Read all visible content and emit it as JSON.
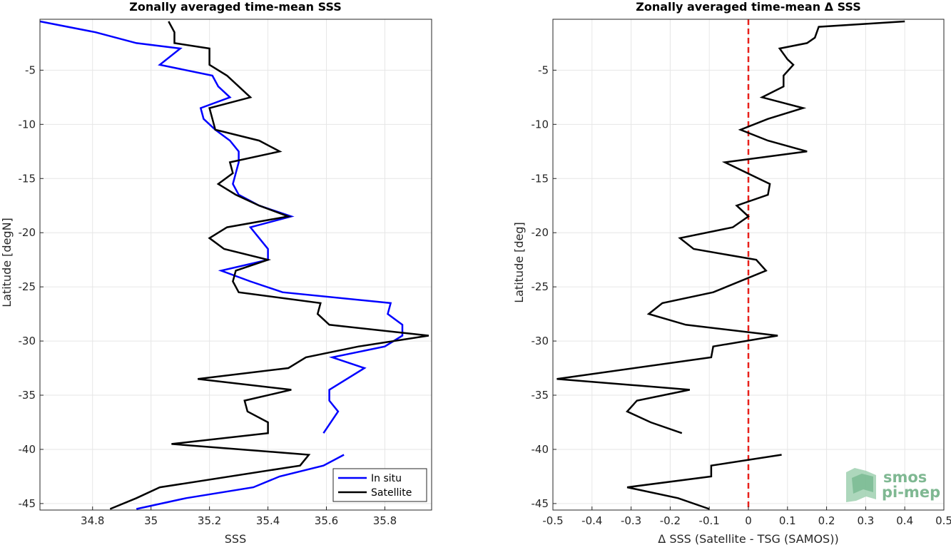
{
  "chart_data": [
    {
      "type": "line",
      "title": "Zonally averaged time-mean SSS",
      "xlabel": "SSS",
      "ylabel": "Latitude [degN]",
      "xlim": [
        34.62,
        35.96
      ],
      "ylim": [
        -45.6,
        -0.3
      ],
      "xticks": [
        34.8,
        35,
        35.2,
        35.4,
        35.6,
        35.8
      ],
      "xtick_labels": [
        "34.8",
        "35",
        "35.2",
        "35.4",
        "35.6",
        "35.8"
      ],
      "yticks": [
        -45,
        -40,
        -35,
        -30,
        -25,
        -20,
        -15,
        -10,
        -5
      ],
      "ytick_labels": [
        "-45",
        "-40",
        "-35",
        "-30",
        "-25",
        "-20",
        "-15",
        "-10",
        "-5"
      ],
      "grid": true,
      "legend_position": "bottom-right",
      "series": [
        {
          "name": "In situ",
          "color": "#0000ff",
          "points": [
            [
              34.62,
              -0.5
            ],
            [
              34.81,
              -1.5
            ],
            [
              34.95,
              -2.5
            ],
            [
              35.1,
              -3
            ],
            [
              35.03,
              -4.5
            ],
            [
              35.21,
              -5.5
            ],
            [
              35.23,
              -6.5
            ],
            [
              35.27,
              -7.5
            ],
            [
              35.17,
              -8.5
            ],
            [
              35.18,
              -9.5
            ],
            [
              35.22,
              -10.5
            ],
            [
              35.27,
              -11.5
            ],
            [
              35.3,
              -12.5
            ],
            [
              35.3,
              -13.5
            ],
            [
              35.29,
              -14.5
            ],
            [
              35.28,
              -15.5
            ],
            [
              35.3,
              -16.5
            ],
            [
              35.37,
              -17.5
            ],
            [
              35.48,
              -18.5
            ],
            [
              35.34,
              -19.5
            ],
            [
              35.37,
              -20.5
            ],
            [
              35.4,
              -21.5
            ],
            [
              35.4,
              -22.5
            ],
            [
              35.24,
              -23.5
            ],
            [
              35.34,
              -24.5
            ],
            [
              35.45,
              -25.5
            ],
            [
              35.82,
              -26.5
            ],
            [
              35.81,
              -27.5
            ],
            [
              35.86,
              -28.5
            ],
            [
              35.86,
              -29.5
            ],
            [
              35.8,
              -30.5
            ],
            [
              35.62,
              -31.5
            ],
            [
              35.73,
              -32.5
            ],
            [
              35.61,
              -34.5
            ],
            [
              35.61,
              -35.5
            ],
            [
              35.64,
              -36.5
            ],
            [
              35.59,
              -38.5
            ]
          ]
        },
        {
          "name": "In situ",
          "color": "#0000ff",
          "points": [
            [
              35.66,
              -40.5
            ],
            [
              35.59,
              -41.5
            ],
            [
              35.44,
              -42.5
            ],
            [
              35.35,
              -43.5
            ],
            [
              35.12,
              -44.5
            ],
            [
              34.95,
              -45.5
            ]
          ]
        },
        {
          "name": "Satellite",
          "color": "#000000",
          "points": [
            [
              35.06,
              -0.5
            ],
            [
              35.08,
              -1.5
            ],
            [
              35.08,
              -2.5
            ],
            [
              35.2,
              -3
            ],
            [
              35.2,
              -4.5
            ],
            [
              35.26,
              -5.5
            ],
            [
              35.3,
              -6.5
            ],
            [
              35.34,
              -7.5
            ],
            [
              35.2,
              -8.5
            ],
            [
              35.21,
              -9.5
            ],
            [
              35.22,
              -10.5
            ],
            [
              35.37,
              -11.5
            ],
            [
              35.44,
              -12.5
            ],
            [
              35.27,
              -13.5
            ],
            [
              35.28,
              -14.5
            ],
            [
              35.23,
              -15.5
            ],
            [
              35.29,
              -16.5
            ],
            [
              35.37,
              -17.5
            ],
            [
              35.47,
              -18.5
            ],
            [
              35.26,
              -19.5
            ],
            [
              35.2,
              -20.5
            ],
            [
              35.25,
              -21.5
            ],
            [
              35.4,
              -22.5
            ],
            [
              35.29,
              -23.5
            ],
            [
              35.28,
              -24.5
            ],
            [
              35.3,
              -25.5
            ],
            [
              35.58,
              -26.5
            ],
            [
              35.57,
              -27.5
            ],
            [
              35.61,
              -28.5
            ],
            [
              35.95,
              -29.5
            ],
            [
              35.71,
              -30.5
            ],
            [
              35.53,
              -31.5
            ],
            [
              35.47,
              -32.5
            ],
            [
              35.16,
              -33.5
            ],
            [
              35.48,
              -34.5
            ],
            [
              35.32,
              -35.5
            ],
            [
              35.33,
              -36.5
            ],
            [
              35.4,
              -37.5
            ],
            [
              35.4,
              -38.5
            ],
            [
              35.07,
              -39.5
            ],
            [
              35.54,
              -40.5
            ],
            [
              35.51,
              -41.5
            ],
            [
              35.03,
              -43.5
            ],
            [
              34.95,
              -44.5
            ],
            [
              34.86,
              -45.5
            ]
          ]
        }
      ]
    },
    {
      "type": "line",
      "title": "Zonally averaged time-mean Δ SSS",
      "xlabel": "Δ SSS (Satellite - TSG (SAMOS))",
      "ylabel": "Latitude [deg]",
      "xlim": [
        -0.5,
        0.5
      ],
      "ylim": [
        -45.6,
        -0.3
      ],
      "xticks": [
        -0.5,
        -0.4,
        -0.3,
        -0.2,
        -0.1,
        0,
        0.1,
        0.2,
        0.3,
        0.4,
        0.5
      ],
      "xtick_labels": [
        "-0.5",
        "-0.4",
        "-0.3",
        "-0.2",
        "-0.1",
        "0",
        "0.1",
        "0.2",
        "0.3",
        "0.4",
        "0.5"
      ],
      "yticks": [
        -45,
        -40,
        -35,
        -30,
        -25,
        -20,
        -15,
        -10,
        -5
      ],
      "ytick_labels": [
        "-45",
        "-40",
        "-35",
        "-30",
        "-25",
        "-20",
        "-15",
        "-10",
        "-5"
      ],
      "grid": true,
      "reference_line": {
        "x": 0,
        "color": "#e8201a",
        "style": "dashed"
      },
      "series": [
        {
          "color": "#000000",
          "points": [
            [
              0.4,
              -0.5
            ],
            [
              0.18,
              -1
            ],
            [
              0.17,
              -2
            ],
            [
              0.15,
              -2.5
            ],
            [
              0.08,
              -3
            ],
            [
              0.1,
              -4
            ],
            [
              0.115,
              -4.5
            ],
            [
              0.09,
              -5.5
            ],
            [
              0.09,
              -6.5
            ],
            [
              0.035,
              -7.5
            ],
            [
              0.14,
              -8.5
            ],
            [
              0.05,
              -9.5
            ],
            [
              -0.02,
              -10.5
            ],
            [
              0.05,
              -11.5
            ],
            [
              0.15,
              -12.5
            ],
            [
              -0.06,
              -13.5
            ],
            [
              0.055,
              -15.5
            ],
            [
              0.05,
              -16.5
            ],
            [
              -0.03,
              -17.5
            ],
            [
              0,
              -18.5
            ],
            [
              -0.04,
              -19.5
            ],
            [
              -0.175,
              -20.5
            ],
            [
              -0.14,
              -21.5
            ],
            [
              0.02,
              -22.5
            ],
            [
              0.045,
              -23.5
            ],
            [
              -0.09,
              -25.5
            ],
            [
              -0.22,
              -26.5
            ],
            [
              -0.255,
              -27.5
            ],
            [
              -0.16,
              -28.5
            ],
            [
              0.075,
              -29.5
            ],
            [
              -0.09,
              -30.5
            ],
            [
              -0.095,
              -31.5
            ],
            [
              -0.49,
              -33.5
            ],
            [
              -0.15,
              -34.5
            ],
            [
              -0.285,
              -35.5
            ],
            [
              -0.31,
              -36.5
            ],
            [
              -0.25,
              -37.5
            ],
            [
              -0.17,
              -38.5
            ]
          ]
        },
        {
          "color": "#000000",
          "points": [
            [
              0.085,
              -40.5
            ],
            [
              -0.095,
              -41.5
            ],
            [
              -0.095,
              -42.5
            ],
            [
              -0.31,
              -43.5
            ],
            [
              -0.18,
              -44.5
            ],
            [
              -0.1,
              -45.5
            ]
          ]
        }
      ]
    }
  ],
  "legend": {
    "items": [
      {
        "label": "In situ",
        "color": "#0000ff"
      },
      {
        "label": "Satellite",
        "color": "#000000"
      }
    ]
  },
  "logo": {
    "line1": "smos",
    "line2": "pi-mep"
  }
}
